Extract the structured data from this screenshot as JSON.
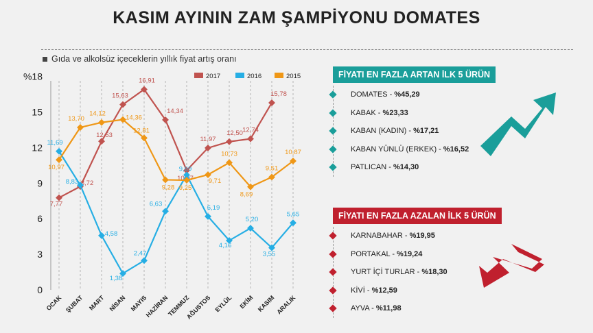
{
  "header": {
    "title": "KASIM AYININ ZAM ŞAMPİYONU DOMATES",
    "subtitle": "Gıda ve alkolsüz içeceklerin yıllık fiyat artış oranı"
  },
  "colors": {
    "s2017": "#c0534f",
    "s2016": "#26aee4",
    "s2015": "#ef9716",
    "increase_panel": "#1a9e9a",
    "decrease_panel": "#c0202e"
  },
  "icons": {
    "increase_arrow": "trend-up-arrow-icon",
    "decrease_arrow": "trend-down-arrow-icon",
    "bullet": "diamond-bullet-icon"
  },
  "chart_data": {
    "type": "line",
    "title": "KASIM AYININ ZAM ŞAMPİYONU DOMATES",
    "subtitle": "Gıda ve alkolsüz içeceklerin yıllık fiyat artış oranı",
    "x": [
      "OCAK",
      "ŞUBAT",
      "MART",
      "NİSAN",
      "MAYIS",
      "HAZİRAN",
      "TEMMUZ",
      "AĞUSTOS",
      "EYLÜL",
      "EKİM",
      "KASIM",
      "ARALIK"
    ],
    "ylim": [
      0,
      18
    ],
    "yticks": [
      "0",
      "3",
      "6",
      "9",
      "12",
      "15",
      "%18"
    ],
    "grid": "vertical dashed",
    "legend_position": "top-right",
    "series": [
      {
        "name": "2017",
        "values": [
          7.77,
          8.72,
          12.53,
          15.63,
          16.91,
          14.34,
          10.07,
          11.97,
          12.5,
          12.74,
          15.78,
          null
        ],
        "labels": [
          "7,77",
          "8,72",
          "12,53",
          "15,63",
          "16,91",
          "14,34",
          "10,07",
          "11,97",
          "12,50",
          "12,74",
          "15,78",
          ""
        ]
      },
      {
        "name": "2016",
        "values": [
          11.69,
          8.83,
          4.58,
          1.38,
          2.47,
          6.63,
          9.69,
          6.19,
          4.16,
          5.2,
          3.55,
          5.65
        ],
        "labels": [
          "11,69",
          "8,83",
          "4,58",
          "1,38",
          "2,47",
          "6,63",
          "9,69",
          "6,19",
          "4,16",
          "5,20",
          "3,55",
          "5,65"
        ]
      },
      {
        "name": "2015",
        "values": [
          10.97,
          13.7,
          14.12,
          14.36,
          12.81,
          9.28,
          9.25,
          9.71,
          10.73,
          8.69,
          9.51,
          10.87
        ],
        "labels": [
          "10,97",
          "13,70",
          "14,12",
          "14,36",
          "12,81",
          "9,28",
          "9,25",
          "9,71",
          "10,73",
          "8,69",
          "9,51",
          "10,87"
        ]
      }
    ]
  },
  "increase_panel": {
    "title": "FİYATI EN FAZLA ARTAN İLK 5 ÜRÜN",
    "items": [
      {
        "name": "DOMATES",
        "value": "%45,29"
      },
      {
        "name": "KABAK",
        "value": "%23,33"
      },
      {
        "name": "KABAN (KADIN)",
        "value": "%17,21"
      },
      {
        "name": "KABAN YÜNLÜ (ERKEK)",
        "value": "%16,52"
      },
      {
        "name": "PATLICAN",
        "value": "%14,30"
      }
    ]
  },
  "decrease_panel": {
    "title": "FİYATI EN FAZLA AZALAN İLK 5 ÜRÜN",
    "items": [
      {
        "name": "KARNABAHAR",
        "value": "%19,95"
      },
      {
        "name": "PORTAKAL",
        "value": "%19,24"
      },
      {
        "name": "YURT İÇİ TURLAR",
        "value": "%18,30"
      },
      {
        "name": "KİVİ",
        "value": "%12,59"
      },
      {
        "name": "AYVA",
        "value": "%11,98"
      }
    ]
  }
}
